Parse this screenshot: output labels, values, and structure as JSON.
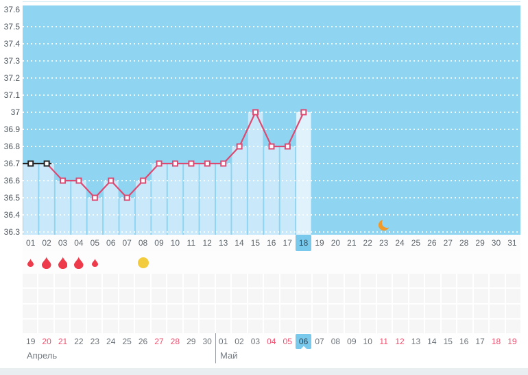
{
  "chart_data": {
    "type": "line",
    "title": "",
    "xlabel": "",
    "ylabel": "",
    "ylim": [
      36.3,
      37.6
    ],
    "y_ticks": [
      "37.6",
      "37.5",
      "37.4",
      "37.3",
      "37.2",
      "37.1",
      "37",
      "36.9",
      "36.8",
      "36.7",
      "36.6",
      "36.5",
      "36.4",
      "36.3"
    ],
    "x_categories": [
      "01",
      "02",
      "03",
      "04",
      "05",
      "06",
      "07",
      "08",
      "09",
      "10",
      "11",
      "12",
      "13",
      "14",
      "15",
      "16",
      "17",
      "18",
      "19",
      "20",
      "21",
      "22",
      "23",
      "24",
      "25",
      "26",
      "27",
      "28",
      "29",
      "30",
      "31"
    ],
    "series": [
      {
        "name": "temperature",
        "values": [
          36.7,
          36.7,
          36.6,
          36.6,
          36.5,
          36.6,
          36.5,
          36.6,
          36.7,
          36.7,
          36.7,
          36.7,
          36.7,
          36.8,
          37,
          36.8,
          36.8,
          37
        ],
        "black_segment_first_n_points": 2
      }
    ],
    "grid": "dotted-white-horizontal",
    "legend_position": "none",
    "selected_day": "18",
    "moon_icon_day": 23
  },
  "cycle_days": {
    "labels": [
      "01",
      "02",
      "03",
      "04",
      "05",
      "06",
      "07",
      "08",
      "09",
      "10",
      "11",
      "12",
      "13",
      "14",
      "15",
      "16",
      "17",
      "18",
      "19",
      "20",
      "21",
      "22",
      "23",
      "24",
      "25",
      "26",
      "27",
      "28",
      "29",
      "30",
      "31"
    ],
    "selected": "18"
  },
  "marks": {
    "drops": [
      {
        "day": "01",
        "size": "small"
      },
      {
        "day": "02",
        "size": "large"
      },
      {
        "day": "03",
        "size": "large"
      },
      {
        "day": "04",
        "size": "large"
      },
      {
        "day": "05",
        "size": "small"
      }
    ],
    "circle_day": "08"
  },
  "notes_grid": {
    "rows": 4,
    "columns": 31
  },
  "calendar": {
    "months": [
      {
        "label": "Апрель",
        "dates": [
          "19",
          "20",
          "21",
          "22",
          "23",
          "24",
          "25",
          "26",
          "27",
          "28",
          "29",
          "30"
        ],
        "weekend_dates": [
          "20",
          "21",
          "27",
          "28"
        ],
        "selected_date": ""
      },
      {
        "label": "Май",
        "dates": [
          "01",
          "02",
          "03",
          "04",
          "05",
          "06",
          "07",
          "08",
          "09",
          "10",
          "11",
          "12",
          "13",
          "14",
          "15",
          "16",
          "17",
          "18",
          "19"
        ],
        "weekend_dates": [
          "04",
          "05",
          "11",
          "12",
          "18",
          "19"
        ],
        "selected_date": "06"
      }
    ]
  },
  "colors": {
    "plot_bg": "#8fd5f2",
    "column_fill": "#c9e9fa",
    "selected_column_fill": "#e0f3fd",
    "gridline": "rgba(255,255,255,0.85)",
    "line": "#dc4a72",
    "line_black": "#222222",
    "marker_fill": "#ffffff",
    "selected_day_bg": "#79c9ed",
    "drop_red": "#ee3b4c",
    "circle_yellow": "#f3cc3e",
    "moon_orange": "#f09a2b",
    "weekend_red": "#f0506e"
  }
}
